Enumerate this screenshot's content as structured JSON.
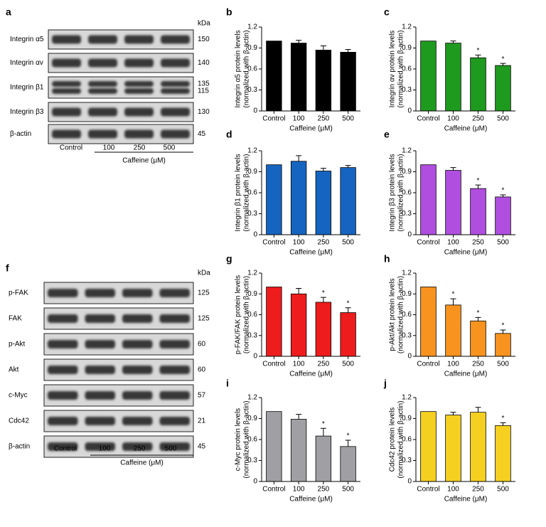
{
  "blots": [
    {
      "label": "a",
      "unit": "kDa",
      "lanes": [
        "Control",
        "100",
        "250",
        "500"
      ],
      "xlabel": "Caffeine (μM)",
      "rows": [
        {
          "name": "Integrin α5",
          "kda": [
            150
          ]
        },
        {
          "name": "Integrin αv",
          "kda": [
            140
          ]
        },
        {
          "name": "Integrin β1",
          "kda": [
            135,
            115
          ]
        },
        {
          "name": "Integrin β3",
          "kda": [
            130
          ]
        },
        {
          "name": "β-actin",
          "kda": [
            45
          ]
        }
      ]
    },
    {
      "label": "f",
      "unit": "kDa",
      "lanes": [
        "Control",
        "100",
        "250",
        "500"
      ],
      "xlabel": "Caffeine (μM)",
      "rows": [
        {
          "name": "p-FAK",
          "kda": [
            125
          ]
        },
        {
          "name": "FAK",
          "kda": [
            125
          ]
        },
        {
          "name": "p-Akt",
          "kda": [
            60
          ]
        },
        {
          "name": "Akt",
          "kda": [
            60
          ]
        },
        {
          "name": "c-Myc",
          "kda": [
            57
          ]
        },
        {
          "name": "Cdc42",
          "kda": [
            21
          ]
        },
        {
          "name": "β-actin",
          "kda": [
            45
          ]
        }
      ]
    }
  ],
  "chart_data": [
    {
      "type": "bar",
      "label": "b",
      "ylabel": [
        "Integrin α5 protein levels",
        "(normalized with β-actin)"
      ],
      "xlabel": "Caffeine (μM)",
      "categories": [
        "Control",
        "100",
        "250",
        "500"
      ],
      "values": [
        1.0,
        0.97,
        0.87,
        0.84
      ],
      "errors": [
        null,
        0.04,
        0.06,
        0.04
      ],
      "annotations": [
        null,
        null,
        null,
        null
      ],
      "color": "#000000",
      "ylim": [
        0,
        1.2
      ],
      "yticks": [
        0,
        0.3,
        0.6,
        0.9,
        1.2
      ]
    },
    {
      "type": "bar",
      "label": "c",
      "ylabel": [
        "Integrin αv protein levels",
        "(normalized with β-actin)"
      ],
      "xlabel": "Caffeine (μM)",
      "categories": [
        "Control",
        "100",
        "250",
        "500"
      ],
      "values": [
        1.0,
        0.97,
        0.76,
        0.65
      ],
      "errors": [
        null,
        0.03,
        0.04,
        0.03
      ],
      "annotations": [
        null,
        null,
        "*",
        "*"
      ],
      "color": "#1e9a1e",
      "ylim": [
        0,
        1.2
      ],
      "yticks": [
        0,
        0.3,
        0.6,
        0.9,
        1.2
      ]
    },
    {
      "type": "bar",
      "label": "d",
      "ylabel": [
        "Integrin β1 protein levels",
        "(normalized with β-actin)"
      ],
      "xlabel": "Caffeine (μM)",
      "categories": [
        "Control",
        "100",
        "250",
        "500"
      ],
      "values": [
        1.0,
        1.05,
        0.91,
        0.96
      ],
      "errors": [
        null,
        0.08,
        0.04,
        0.03
      ],
      "annotations": [
        null,
        null,
        null,
        null
      ],
      "color": "#1565c0",
      "ylim": [
        0,
        1.2
      ],
      "yticks": [
        0,
        0.3,
        0.6,
        0.9,
        1.2
      ]
    },
    {
      "type": "bar",
      "label": "e",
      "ylabel": [
        "Integrin β3 protein levels",
        "(normalized with β-actin)"
      ],
      "xlabel": "Caffeine (μM)",
      "categories": [
        "Control",
        "100",
        "250",
        "500"
      ],
      "values": [
        1.0,
        0.92,
        0.66,
        0.54
      ],
      "errors": [
        null,
        0.04,
        0.05,
        0.03
      ],
      "annotations": [
        null,
        null,
        "*",
        "*"
      ],
      "color": "#b04ee0",
      "ylim": [
        0,
        1.2
      ],
      "yticks": [
        0,
        0.3,
        0.6,
        0.9,
        1.2
      ]
    },
    {
      "type": "bar",
      "label": "g",
      "ylabel": [
        "p-FAK/FAK protein levels",
        "(normalized with β-actin)"
      ],
      "xlabel": "Caffeine (μM)",
      "categories": [
        "Control",
        "100",
        "250",
        "500"
      ],
      "values": [
        1.0,
        0.9,
        0.78,
        0.63
      ],
      "errors": [
        null,
        0.08,
        0.07,
        0.07
      ],
      "annotations": [
        null,
        null,
        "*",
        "*"
      ],
      "color": "#ee1c1c",
      "ylim": [
        0,
        1.2
      ],
      "yticks": [
        0,
        0.3,
        0.6,
        0.9,
        1.2
      ]
    },
    {
      "type": "bar",
      "label": "h",
      "ylabel": [
        "p-Akt/Akt protein levels",
        "(normalized with β-actin)"
      ],
      "xlabel": "Caffeine (μM)",
      "categories": [
        "Control",
        "100",
        "250",
        "500"
      ],
      "values": [
        1.0,
        0.74,
        0.51,
        0.33
      ],
      "errors": [
        null,
        0.09,
        0.05,
        0.05
      ],
      "annotations": [
        null,
        "*",
        "*",
        "*"
      ],
      "color": "#f7931e",
      "ylim": [
        0,
        1.2
      ],
      "yticks": [
        0,
        0.3,
        0.6,
        0.9,
        1.2
      ]
    },
    {
      "type": "bar",
      "label": "i",
      "ylabel": [
        "c-Myc protein levels",
        "(normalized with β-actin)"
      ],
      "xlabel": "Caffeine (μM)",
      "categories": [
        "Control",
        "100",
        "250",
        "500"
      ],
      "values": [
        1.0,
        0.89,
        0.65,
        0.5
      ],
      "errors": [
        null,
        0.07,
        0.11,
        0.09
      ],
      "annotations": [
        null,
        null,
        "*",
        "*"
      ],
      "color": "#a0a0a4",
      "ylim": [
        0,
        1.2
      ],
      "yticks": [
        0,
        0.3,
        0.6,
        0.9,
        1.2
      ]
    },
    {
      "type": "bar",
      "label": "j",
      "ylabel": [
        "Cdc42 protein levels",
        "(normalized with β-actin)"
      ],
      "xlabel": "Caffeine (μM)",
      "categories": [
        "Control",
        "100",
        "250",
        "500"
      ],
      "values": [
        1.0,
        0.95,
        0.99,
        0.8
      ],
      "errors": [
        null,
        0.04,
        0.07,
        0.04
      ],
      "annotations": [
        null,
        null,
        null,
        "*"
      ],
      "color": "#f5d020",
      "ylim": [
        0,
        1.2
      ],
      "yticks": [
        0,
        0.3,
        0.6,
        0.9,
        1.2
      ]
    }
  ]
}
